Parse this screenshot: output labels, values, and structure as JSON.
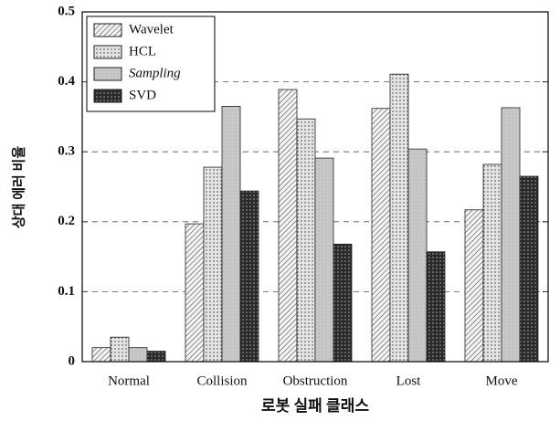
{
  "chart_data": {
    "type": "bar",
    "xlabel": "로봇 실패 클래스",
    "ylabel": "상대 에러 비율",
    "categories": [
      "Normal",
      "Collision",
      "Obstruction",
      "Lost",
      "Move"
    ],
    "series": [
      {
        "name": "Wavelet",
        "color": "#f2f2f2",
        "values": [
          0.02,
          0.197,
          0.389,
          0.362,
          0.217
        ]
      },
      {
        "name": "HCL",
        "color": "#e4e4e4",
        "values": [
          0.035,
          0.278,
          0.347,
          0.411,
          0.282
        ]
      },
      {
        "name": "Sampling",
        "color": "#c8c8c8",
        "values": [
          0.02,
          0.365,
          0.291,
          0.304,
          0.363
        ]
      },
      {
        "name": "SVD",
        "color": "#2a2a2a",
        "values": [
          0.015,
          0.244,
          0.168,
          0.157,
          0.265
        ]
      }
    ],
    "ylim": [
      0,
      0.5
    ],
    "yticks": [
      0,
      0.1,
      0.2,
      0.3,
      0.4,
      0.5
    ],
    "grid": true,
    "legend": "upper left"
  }
}
